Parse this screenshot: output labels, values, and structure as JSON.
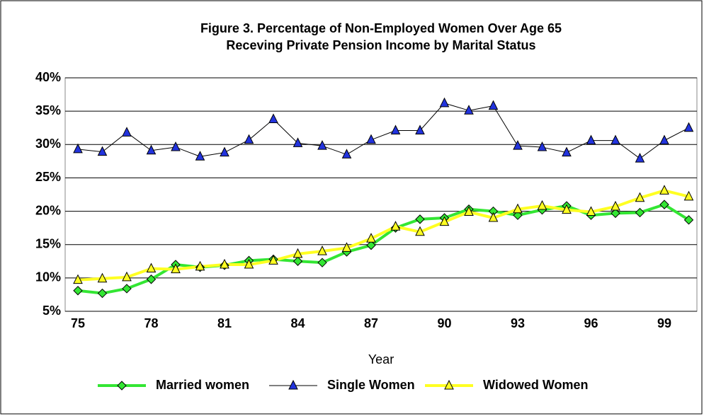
{
  "chart_data": {
    "type": "line",
    "title": [
      "Figure 3.  Percentage of Non-Employed Women Over Age 65",
      "Receving Private Pension Income by Marital Status"
    ],
    "x_label": "Year",
    "categories": [
      "75",
      null,
      null,
      "78",
      null,
      null,
      "81",
      null,
      null,
      "84",
      null,
      null,
      "87",
      null,
      null,
      "90",
      null,
      null,
      "93",
      null,
      null,
      "96",
      null,
      null,
      "99",
      null
    ],
    "ylim": [
      5,
      40
    ],
    "yticks": [
      {
        "value": 5,
        "label": "5%"
      },
      {
        "value": 10,
        "label": "10%"
      },
      {
        "value": 15,
        "label": "15%"
      },
      {
        "value": 20,
        "label": "20%"
      },
      {
        "value": 25,
        "label": "25%"
      },
      {
        "value": 30,
        "label": "30%"
      },
      {
        "value": 35,
        "label": "35%"
      },
      {
        "value": 40,
        "label": "40%"
      }
    ],
    "grid": true,
    "legend": "bottom",
    "series": [
      {
        "name": "Married women",
        "color": "#33e633",
        "marker": "diamond",
        "marker_color": "#33e633",
        "line_width": 4,
        "values": [
          8.1,
          7.7,
          8.4,
          9.8,
          12.0,
          11.6,
          11.9,
          12.6,
          12.8,
          12.5,
          12.3,
          13.9,
          14.9,
          17.5,
          18.8,
          19.0,
          20.3,
          20.0,
          19.4,
          20.2,
          20.8,
          19.4,
          19.7,
          19.8,
          21.0,
          18.7
        ]
      },
      {
        "name": "Single Women",
        "color": "#000000",
        "marker": "triangle",
        "marker_color": "#2233dd",
        "line_width": 1,
        "values": [
          29.3,
          28.9,
          31.8,
          29.1,
          29.6,
          28.2,
          28.8,
          30.7,
          33.8,
          30.2,
          29.8,
          28.5,
          30.7,
          32.1,
          32.1,
          36.2,
          35.1,
          35.8,
          29.8,
          29.6,
          28.8,
          30.6,
          30.6,
          27.9,
          30.6,
          32.5
        ]
      },
      {
        "name": "Widowed Women",
        "color": "#ffff22",
        "marker": "triangle",
        "marker_color": "#ffff22",
        "line_width": 4,
        "values": [
          9.7,
          9.9,
          10.1,
          11.4,
          11.3,
          11.7,
          12.0,
          12.0,
          12.6,
          13.6,
          14.0,
          14.5,
          15.9,
          17.7,
          16.9,
          18.4,
          19.9,
          19.0,
          20.3,
          20.8,
          20.2,
          19.9,
          20.7,
          22.0,
          23.1,
          22.2
        ]
      }
    ]
  }
}
